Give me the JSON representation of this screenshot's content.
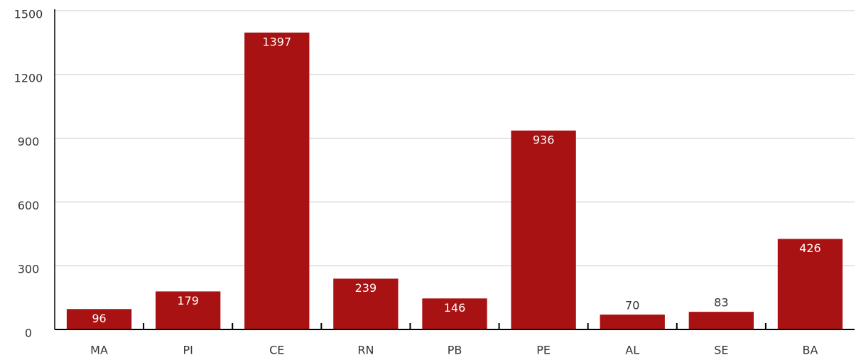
{
  "chart_data": {
    "type": "bar",
    "categories": [
      "MA",
      "PI",
      "CE",
      "RN",
      "PB",
      "PE",
      "AL",
      "SE",
      "BA"
    ],
    "values": [
      96,
      179,
      1397,
      239,
      146,
      936,
      70,
      83,
      426
    ],
    "color": "#a91212",
    "ylim": [
      0,
      1500
    ],
    "yticks": [
      0,
      300,
      600,
      900,
      1200,
      1500
    ],
    "grid": true
  }
}
